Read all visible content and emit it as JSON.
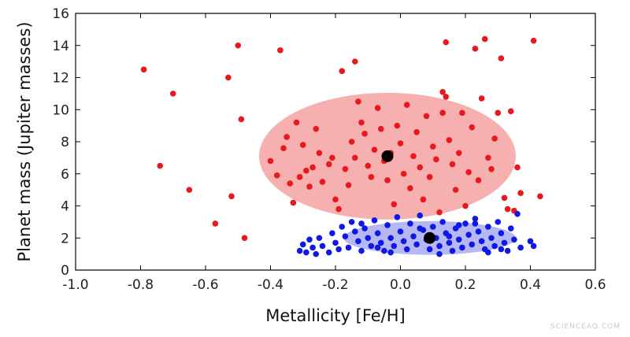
{
  "chart_data": {
    "type": "scatter",
    "xlabel": "Metallicity [Fe/H]",
    "ylabel": "Planet mass (Jupiter masses)",
    "xlim": [
      -1.0,
      0.6
    ],
    "ylim": [
      0,
      16
    ],
    "xticks": [
      "-1.0",
      "-0.8",
      "-0.6",
      "-0.4",
      "-0.2",
      "0.0",
      "0.2",
      "0.4",
      "0.6"
    ],
    "yticks": [
      "0",
      "2",
      "4",
      "6",
      "8",
      "10",
      "12",
      "14",
      "16"
    ],
    "grid": false,
    "series": [
      {
        "color": "#e8191c",
        "points": [
          [
            -0.79,
            12.5
          ],
          [
            -0.7,
            11.0
          ],
          [
            -0.74,
            6.5
          ],
          [
            -0.65,
            5.0
          ],
          [
            -0.57,
            2.9
          ],
          [
            -0.53,
            12.0
          ],
          [
            -0.52,
            4.6
          ],
          [
            -0.5,
            14.0
          ],
          [
            -0.49,
            9.4
          ],
          [
            -0.48,
            2.0
          ],
          [
            -0.4,
            6.8
          ],
          [
            -0.38,
            5.9
          ],
          [
            -0.37,
            13.7
          ],
          [
            -0.36,
            7.6
          ],
          [
            -0.35,
            8.3
          ],
          [
            -0.34,
            5.4
          ],
          [
            -0.33,
            4.2
          ],
          [
            -0.32,
            9.2
          ],
          [
            -0.31,
            5.8
          ],
          [
            -0.3,
            7.8
          ],
          [
            -0.29,
            6.2
          ],
          [
            -0.28,
            5.2
          ],
          [
            -0.27,
            6.4
          ],
          [
            -0.26,
            8.8
          ],
          [
            -0.25,
            7.3
          ],
          [
            -0.24,
            5.5
          ],
          [
            -0.22,
            6.6
          ],
          [
            -0.21,
            7.0
          ],
          [
            -0.2,
            4.4
          ],
          [
            -0.19,
            3.8
          ],
          [
            -0.18,
            12.4
          ],
          [
            -0.17,
            6.3
          ],
          [
            -0.16,
            5.3
          ],
          [
            -0.15,
            8.0
          ],
          [
            -0.14,
            13.0
          ],
          [
            -0.14,
            7.0
          ],
          [
            -0.13,
            10.5
          ],
          [
            -0.12,
            9.2
          ],
          [
            -0.11,
            8.5
          ],
          [
            -0.1,
            6.5
          ],
          [
            -0.09,
            5.8
          ],
          [
            -0.08,
            7.5
          ],
          [
            -0.07,
            10.1
          ],
          [
            -0.06,
            8.8
          ],
          [
            -0.05,
            6.8
          ],
          [
            -0.04,
            5.6
          ],
          [
            -0.03,
            7.3
          ],
          [
            -0.02,
            4.1
          ],
          [
            -0.01,
            9.0
          ],
          [
            0.0,
            7.9
          ],
          [
            0.01,
            6.0
          ],
          [
            0.02,
            10.3
          ],
          [
            0.03,
            5.1
          ],
          [
            0.04,
            7.1
          ],
          [
            0.05,
            8.6
          ],
          [
            0.06,
            6.4
          ],
          [
            0.07,
            4.4
          ],
          [
            0.08,
            9.6
          ],
          [
            0.09,
            5.8
          ],
          [
            0.1,
            7.7
          ],
          [
            0.11,
            6.9
          ],
          [
            0.12,
            3.6
          ],
          [
            0.13,
            11.1
          ],
          [
            0.13,
            9.8
          ],
          [
            0.14,
            14.2
          ],
          [
            0.14,
            10.8
          ],
          [
            0.15,
            8.1
          ],
          [
            0.16,
            6.6
          ],
          [
            0.17,
            5.0
          ],
          [
            0.18,
            7.3
          ],
          [
            0.19,
            9.8
          ],
          [
            0.2,
            4.0
          ],
          [
            0.21,
            6.1
          ],
          [
            0.22,
            8.9
          ],
          [
            0.23,
            13.8
          ],
          [
            0.24,
            5.6
          ],
          [
            0.25,
            10.7
          ],
          [
            0.26,
            14.4
          ],
          [
            0.27,
            7.0
          ],
          [
            0.28,
            6.3
          ],
          [
            0.29,
            8.2
          ],
          [
            0.3,
            9.8
          ],
          [
            0.31,
            13.2
          ],
          [
            0.32,
            4.5
          ],
          [
            0.33,
            3.8
          ],
          [
            0.34,
            9.9
          ],
          [
            0.35,
            3.7
          ],
          [
            0.36,
            6.4
          ],
          [
            0.37,
            4.8
          ],
          [
            0.41,
            14.3
          ],
          [
            0.43,
            4.6
          ]
        ]
      },
      {
        "color": "#1018e6",
        "points": [
          [
            -0.31,
            1.2
          ],
          [
            -0.3,
            1.6
          ],
          [
            -0.29,
            1.1
          ],
          [
            -0.28,
            1.9
          ],
          [
            -0.27,
            1.4
          ],
          [
            -0.26,
            1.0
          ],
          [
            -0.25,
            2.0
          ],
          [
            -0.24,
            1.5
          ],
          [
            -0.22,
            1.1
          ],
          [
            -0.21,
            2.3
          ],
          [
            -0.2,
            1.7
          ],
          [
            -0.19,
            1.3
          ],
          [
            -0.18,
            2.7
          ],
          [
            -0.17,
            2.1
          ],
          [
            -0.16,
            1.4
          ],
          [
            -0.15,
            3.0
          ],
          [
            -0.14,
            2.4
          ],
          [
            -0.13,
            1.8
          ],
          [
            -0.12,
            1.2
          ],
          [
            -0.11,
            2.6
          ],
          [
            -0.1,
            2.0
          ],
          [
            -0.09,
            1.5
          ],
          [
            -0.08,
            3.1
          ],
          [
            -0.07,
            2.3
          ],
          [
            -0.06,
            1.7
          ],
          [
            -0.05,
            1.2
          ],
          [
            -0.04,
            2.8
          ],
          [
            -0.03,
            2.0
          ],
          [
            -0.02,
            1.5
          ],
          [
            -0.01,
            3.3
          ],
          [
            0.0,
            2.4
          ],
          [
            0.01,
            1.8
          ],
          [
            0.02,
            1.3
          ],
          [
            0.03,
            2.9
          ],
          [
            0.04,
            2.1
          ],
          [
            0.05,
            1.6
          ],
          [
            0.06,
            3.4
          ],
          [
            0.07,
            2.5
          ],
          [
            0.08,
            1.9
          ],
          [
            0.09,
            1.3
          ],
          [
            0.1,
            2.7
          ],
          [
            0.11,
            2.0
          ],
          [
            0.12,
            1.5
          ],
          [
            0.13,
            3.0
          ],
          [
            0.14,
            2.3
          ],
          [
            0.15,
            1.7
          ],
          [
            0.16,
            1.2
          ],
          [
            0.17,
            2.6
          ],
          [
            0.18,
            1.9
          ],
          [
            0.19,
            1.4
          ],
          [
            0.2,
            2.9
          ],
          [
            0.21,
            2.2
          ],
          [
            0.22,
            1.6
          ],
          [
            0.23,
            3.2
          ],
          [
            0.24,
            2.4
          ],
          [
            0.25,
            1.8
          ],
          [
            0.26,
            1.3
          ],
          [
            0.27,
            2.7
          ],
          [
            0.28,
            2.0
          ],
          [
            0.29,
            1.5
          ],
          [
            0.3,
            3.0
          ],
          [
            0.31,
            2.3
          ],
          [
            0.32,
            1.7
          ],
          [
            0.33,
            1.2
          ],
          [
            0.34,
            2.6
          ],
          [
            0.35,
            1.9
          ],
          [
            0.36,
            3.5
          ],
          [
            0.37,
            1.4
          ],
          [
            0.4,
            1.8
          ],
          [
            0.41,
            1.5
          ],
          [
            -0.12,
            2.9
          ],
          [
            0.06,
            2.6
          ],
          [
            0.18,
            2.8
          ],
          [
            0.27,
            1.1
          ],
          [
            0.15,
            2.1
          ],
          [
            -0.03,
            1.1
          ],
          [
            0.23,
            2.9
          ],
          [
            0.31,
            1.3
          ],
          [
            0.12,
            1.0
          ],
          [
            -0.07,
            1.4
          ]
        ]
      }
    ],
    "regions": [
      {
        "center": [
          -0.04,
          7.1
        ],
        "rx": 0.395,
        "ry": 3.95,
        "color": "#f29191"
      },
      {
        "center": [
          0.09,
          2.0
        ],
        "rx": 0.265,
        "ry": 1.05,
        "color": "#9a9cef"
      }
    ],
    "centroids": [
      {
        "x": -0.04,
        "y": 7.1,
        "color": "#000000"
      },
      {
        "x": 0.09,
        "y": 2.0,
        "color": "#000000"
      }
    ]
  },
  "watermark": "SCIENCEAQ.COM"
}
